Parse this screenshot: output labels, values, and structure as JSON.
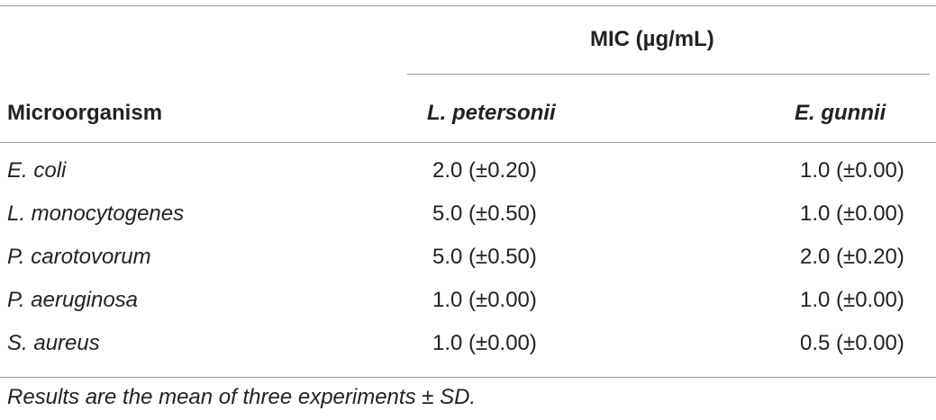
{
  "table": {
    "group_header": "MIC (µg/mL)",
    "columns": [
      "Microorganism",
      "L. petersonii",
      "E. gunnii"
    ],
    "rows": [
      [
        "E. coli",
        "2.0 (±0.20)",
        "1.0 (±0.00)"
      ],
      [
        "L. monocytogenes",
        "5.0 (±0.50)",
        "1.0 (±0.00)"
      ],
      [
        "P. carotovorum",
        "5.0 (±0.50)",
        "2.0 (±0.20)"
      ],
      [
        "P. aeruginosa",
        "1.0 (±0.00)",
        "1.0 (±0.00)"
      ],
      [
        "S. aureus",
        "1.0 (±0.00)",
        "0.5 (±0.00)"
      ]
    ],
    "footnote": "Results are the mean of three experiments ± SD."
  }
}
